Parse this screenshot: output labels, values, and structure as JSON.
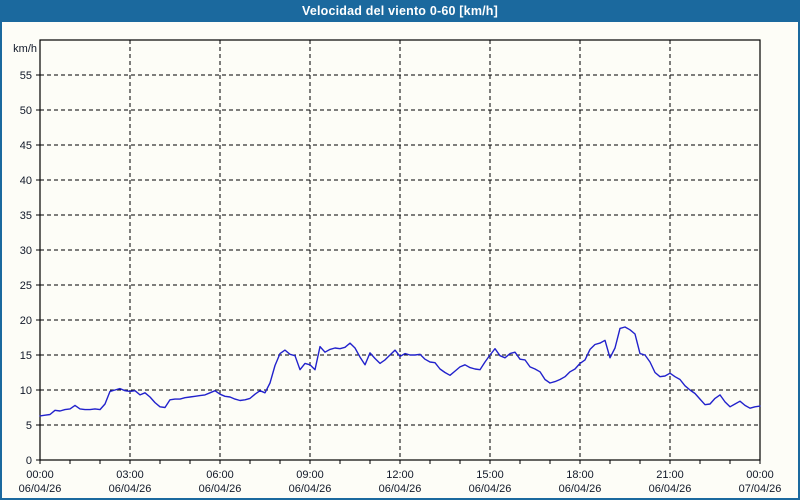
{
  "window": {
    "title": "Velocidad del viento 0-60 [km/h]"
  },
  "colors": {
    "titlebar_bg": "#1b699e",
    "window_border": "#1b699e",
    "background": "#fdfdf7",
    "plot_border": "#000000",
    "gridline": "#000000",
    "line": "#2222cc",
    "label_text": "#101828"
  },
  "chart_data": {
    "type": "line",
    "title": "Velocidad del viento 0-60 [km/h]",
    "y_unit": "km/h",
    "xlabel": "",
    "ylabel": "km/h",
    "ylim": [
      0,
      60
    ],
    "xlim_hours": [
      0,
      24
    ],
    "grid": true,
    "legend_position": "none",
    "y_tick_step": 5,
    "y_tick_labels": [
      0,
      5,
      10,
      15,
      20,
      25,
      30,
      35,
      40,
      45,
      50,
      55
    ],
    "x_minor_tick_hours": 1,
    "x_ticks": [
      {
        "hour": 0,
        "time": "00:00",
        "date": "06/04/26"
      },
      {
        "hour": 3,
        "time": "03:00",
        "date": "06/04/26"
      },
      {
        "hour": 6,
        "time": "06:00",
        "date": "06/04/26"
      },
      {
        "hour": 9,
        "time": "09:00",
        "date": "06/04/26"
      },
      {
        "hour": 12,
        "time": "12:00",
        "date": "06/04/26"
      },
      {
        "hour": 15,
        "time": "15:00",
        "date": "06/04/26"
      },
      {
        "hour": 18,
        "time": "18:00",
        "date": "06/04/26"
      },
      {
        "hour": 21,
        "time": "21:00",
        "date": "06/04/26"
      },
      {
        "hour": 24,
        "time": "00:00",
        "date": "07/04/26"
      }
    ],
    "series": [
      {
        "name": "Velocidad del viento",
        "color": "#2222cc",
        "step_minutes": 10,
        "start_hour": 0,
        "values": [
          6.3,
          6.4,
          6.5,
          7.1,
          7.0,
          7.2,
          7.3,
          7.8,
          7.3,
          7.2,
          7.2,
          7.3,
          7.2,
          8.0,
          9.8,
          10.0,
          10.2,
          9.9,
          9.8,
          9.9,
          9.3,
          9.6,
          9.0,
          8.2,
          7.6,
          7.5,
          8.6,
          8.7,
          8.7,
          8.9,
          9.0,
          9.1,
          9.2,
          9.3,
          9.6,
          9.9,
          9.4,
          9.1,
          9.0,
          8.7,
          8.5,
          8.6,
          8.8,
          9.4,
          9.9,
          9.6,
          11.0,
          13.5,
          15.2,
          15.7,
          15.1,
          14.9,
          12.9,
          13.8,
          13.6,
          12.9,
          16.2,
          15.4,
          15.8,
          16.0,
          15.9,
          16.1,
          16.7,
          16.0,
          14.7,
          13.6,
          15.3,
          14.5,
          13.8,
          14.3,
          15.0,
          15.7,
          14.8,
          15.2,
          15.0,
          15.0,
          15.1,
          14.4,
          14.0,
          13.9,
          13.0,
          12.5,
          12.1,
          12.7,
          13.3,
          13.6,
          13.2,
          13.0,
          12.9,
          14.0,
          15.0,
          15.9,
          14.9,
          14.6,
          15.2,
          15.4,
          14.4,
          14.3,
          13.3,
          13.0,
          12.6,
          11.5,
          11.0,
          11.2,
          11.5,
          11.9,
          12.6,
          13.0,
          13.8,
          14.3,
          15.8,
          16.5,
          16.7,
          17.1,
          14.6,
          16.0,
          18.8,
          19.0,
          18.6,
          18.0,
          15.2,
          15.0,
          14.0,
          12.5,
          11.9,
          12.0,
          12.4,
          11.9,
          11.5,
          10.6,
          10.0,
          9.5,
          8.7,
          7.9,
          8.0,
          8.8,
          9.3,
          8.3,
          7.6,
          8.0,
          8.4,
          7.8,
          7.4,
          7.6,
          7.7
        ]
      }
    ]
  }
}
